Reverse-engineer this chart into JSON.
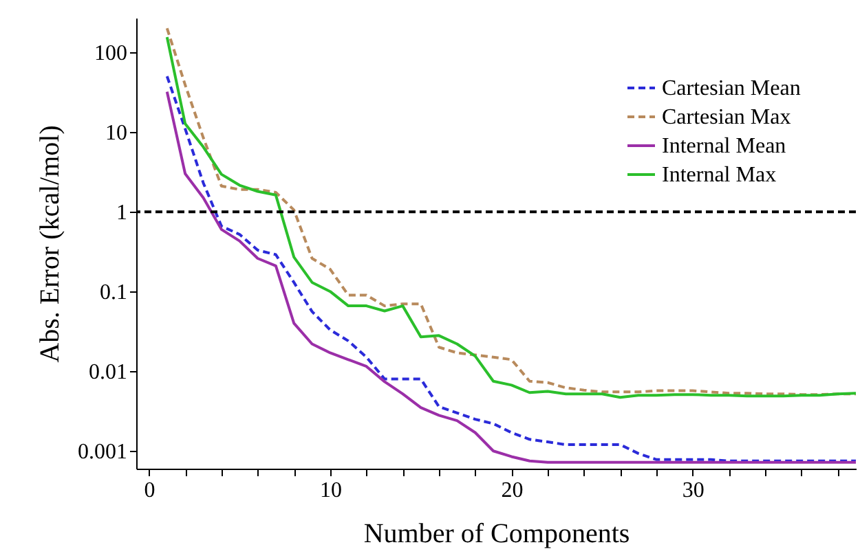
{
  "chart_data": {
    "type": "line",
    "xlabel": "Number of Components",
    "ylabel": "Abs. Error (kcal/mol)",
    "x": [
      1,
      2,
      3,
      4,
      5,
      6,
      7,
      8,
      9,
      10,
      11,
      12,
      13,
      14,
      15,
      16,
      17,
      18,
      19,
      20,
      21,
      22,
      23,
      24,
      25,
      26,
      27,
      28,
      29,
      30,
      31,
      32,
      33,
      34,
      35,
      36,
      37,
      38,
      39
    ],
    "series": [
      {
        "name": "Cartesian Mean",
        "color": "#2b2bd9",
        "line_style": "dashed",
        "values": [
          50,
          11,
          2.3,
          0.66,
          0.52,
          0.33,
          0.29,
          0.13,
          0.056,
          0.033,
          0.024,
          0.015,
          0.008,
          0.008,
          0.008,
          0.0036,
          0.003,
          0.0025,
          0.0022,
          0.0017,
          0.0014,
          0.0013,
          0.0012,
          0.0012,
          0.0012,
          0.0012,
          0.00093,
          0.00078,
          0.00078,
          0.00078,
          0.00078,
          0.00075,
          0.00075,
          0.00075,
          0.00075,
          0.00075,
          0.00075,
          0.00075,
          0.00075
        ]
      },
      {
        "name": "Cartesian Max",
        "color": "#b88a5c",
        "line_style": "dashed",
        "values": [
          200,
          39,
          8.5,
          2.1,
          1.9,
          1.9,
          1.75,
          1.05,
          0.26,
          0.19,
          0.09,
          0.09,
          0.066,
          0.07,
          0.07,
          0.02,
          0.017,
          0.016,
          0.015,
          0.014,
          0.0075,
          0.0072,
          0.0062,
          0.0058,
          0.0055,
          0.0055,
          0.0055,
          0.0057,
          0.0057,
          0.0057,
          0.0055,
          0.0053,
          0.0053,
          0.0052,
          0.0052,
          0.0051,
          0.0051,
          0.0052,
          0.0052
        ]
      },
      {
        "name": "Internal Mean",
        "color": "#9b2fa8",
        "line_style": "solid",
        "values": [
          32,
          3,
          1.5,
          0.6,
          0.43,
          0.26,
          0.21,
          0.04,
          0.022,
          0.017,
          0.014,
          0.0115,
          0.0074,
          0.0052,
          0.0035,
          0.0028,
          0.0024,
          0.0017,
          0.001,
          0.00085,
          0.00075,
          0.00072,
          0.00072,
          0.00072,
          0.00072,
          0.00072,
          0.00072,
          0.00072,
          0.00072,
          0.00072,
          0.00072,
          0.00072,
          0.00072,
          0.00072,
          0.00072,
          0.00072,
          0.00072,
          0.00072,
          0.00072
        ]
      },
      {
        "name": "Internal Max",
        "color": "#2bbf2b",
        "line_style": "solid",
        "values": [
          155,
          12.7,
          6.5,
          2.95,
          2.15,
          1.8,
          1.62,
          0.27,
          0.13,
          0.1,
          0.066,
          0.066,
          0.057,
          0.066,
          0.027,
          0.028,
          0.022,
          0.0155,
          0.0075,
          0.0067,
          0.0054,
          0.0056,
          0.0052,
          0.0052,
          0.0052,
          0.0047,
          0.005,
          0.005,
          0.0051,
          0.0051,
          0.005,
          0.005,
          0.0049,
          0.0049,
          0.0049,
          0.005,
          0.005,
          0.0052,
          0.0053
        ]
      }
    ],
    "log": "y",
    "xlim": [
      -0.7,
      39
    ],
    "ylim": [
      0.0006,
      270
    ],
    "xticks": [
      0,
      {
        "value": 2,
        "label": null
      },
      {
        "value": 4,
        "label": null
      },
      {
        "value": 6,
        "label": null
      },
      {
        "value": 8,
        "label": null
      },
      10,
      {
        "value": 12,
        "label": null
      },
      {
        "value": 14,
        "label": null
      },
      {
        "value": 16,
        "label": null
      },
      {
        "value": 18,
        "label": null
      },
      20,
      {
        "value": 22,
        "label": null
      },
      {
        "value": 24,
        "label": null
      },
      {
        "value": 26,
        "label": null
      },
      {
        "value": 28,
        "label": null
      },
      30,
      {
        "value": 32,
        "label": null
      },
      {
        "value": 34,
        "label": null
      },
      {
        "value": 36,
        "label": null
      },
      {
        "value": 38,
        "label": null
      }
    ],
    "yticks": [
      {
        "value": 0.001,
        "label": "0.001"
      },
      {
        "value": 0.01,
        "label": "0.01"
      },
      {
        "value": 0.1,
        "label": "0.1"
      },
      1,
      10,
      100
    ],
    "ref_lines": [
      {
        "axis": "y",
        "value": 1,
        "color": "#000000",
        "line_style": "dashed"
      }
    ],
    "grid": false,
    "legend": "top right"
  }
}
